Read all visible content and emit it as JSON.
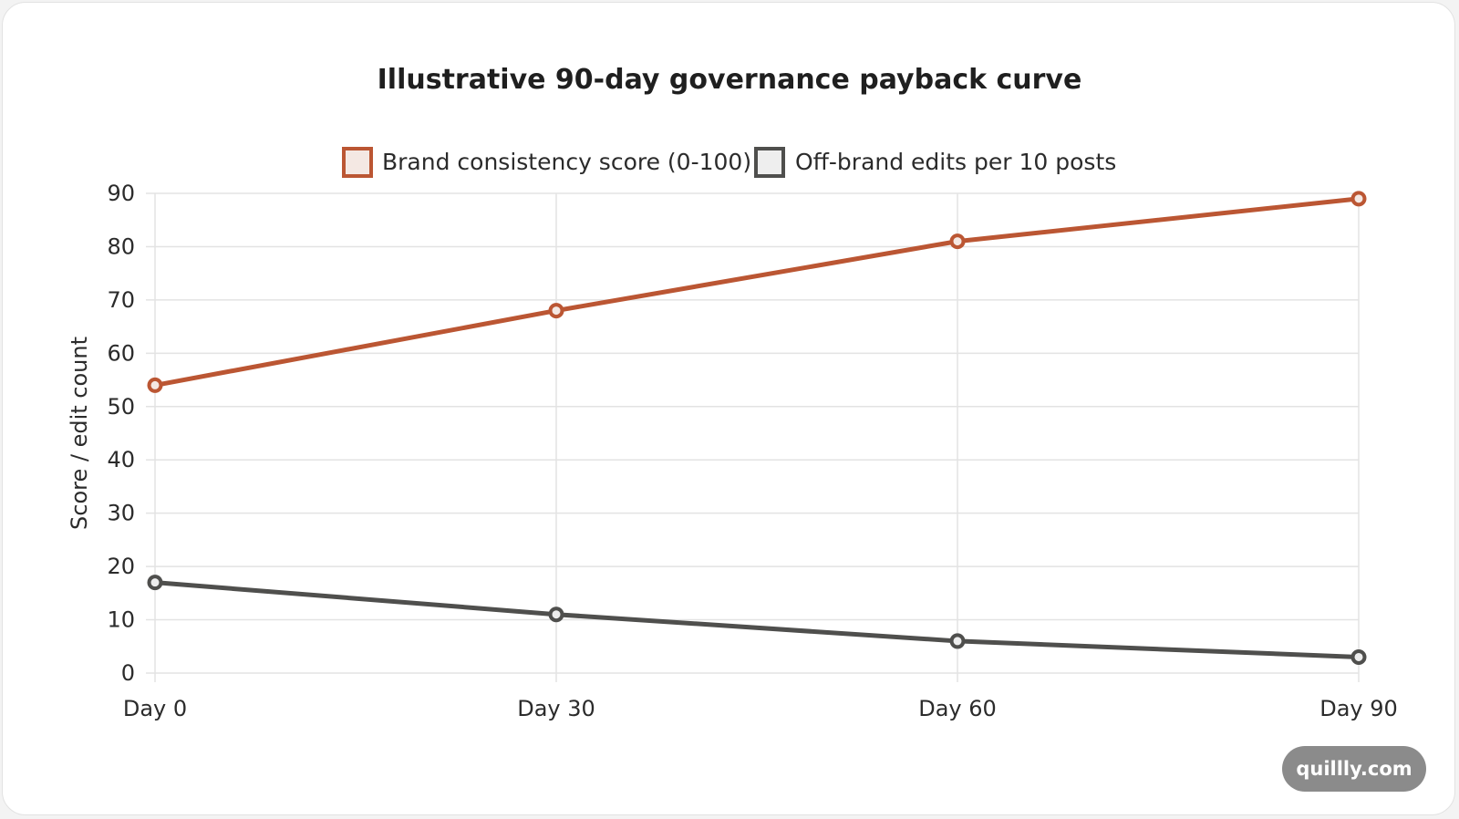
{
  "brand": {
    "badge": "quillly.com"
  },
  "chart_data": {
    "type": "line",
    "title": "Illustrative 90-day governance payback curve",
    "xlabel": "",
    "ylabel": "Score / edit count",
    "categories": [
      "Day 0",
      "Day 30",
      "Day 60",
      "Day 90"
    ],
    "ylim": [
      0,
      90
    ],
    "yticks": [
      0,
      10,
      20,
      30,
      40,
      50,
      60,
      70,
      80,
      90
    ],
    "grid": true,
    "legend_position": "top-center",
    "series": [
      {
        "name": "Brand consistency score (0-100)",
        "values": [
          54,
          68,
          81,
          89
        ],
        "color": "#bb5633",
        "fill": "#f4e8e3"
      },
      {
        "name": "Off-brand edits per 10 posts",
        "values": [
          17,
          11,
          6,
          3
        ],
        "color": "#4f4f4d",
        "fill": "#eeeeee"
      }
    ]
  }
}
